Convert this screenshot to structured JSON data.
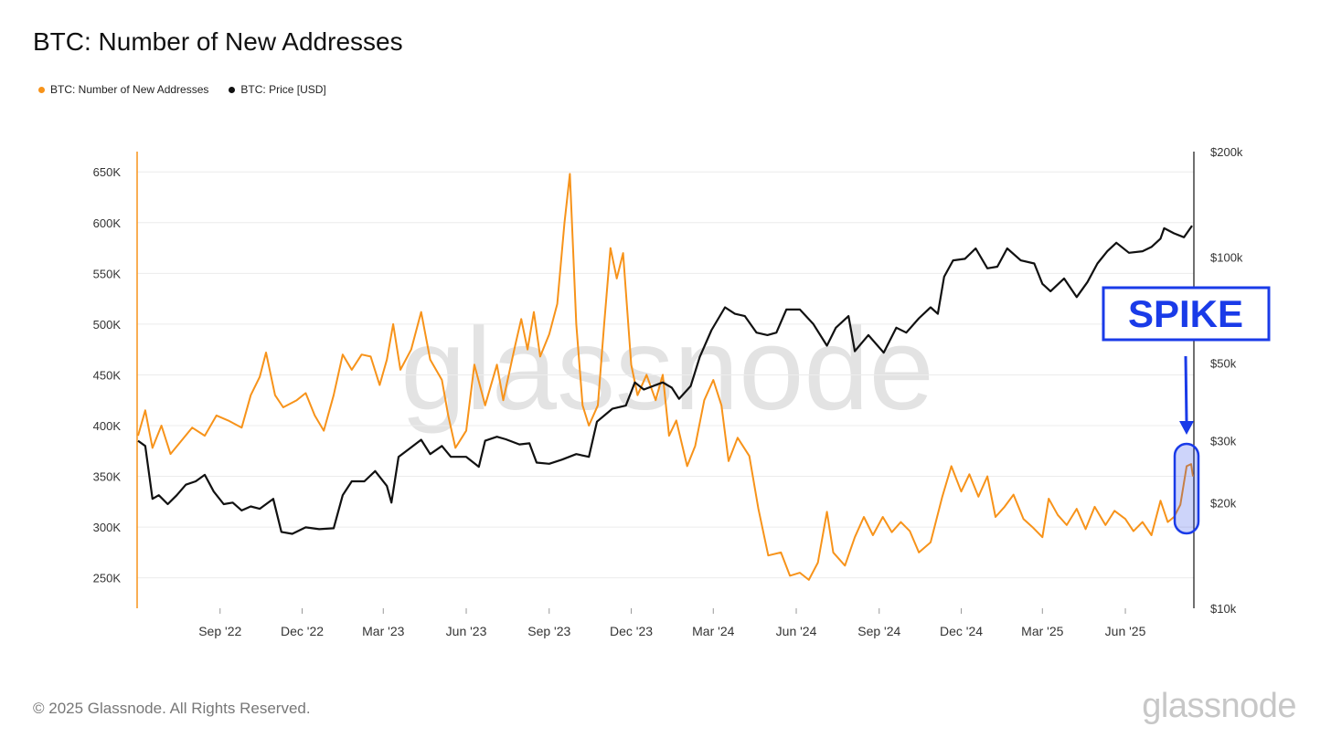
{
  "title": "BTC: Number of New Addresses",
  "legend": [
    {
      "label": "BTC: Number of New Addresses",
      "color": "#f7931a"
    },
    {
      "label": "BTC: Price [USD]",
      "color": "#111111"
    }
  ],
  "footer": "© 2025 Glassnode. All Rights Reserved.",
  "brand": "glassnode",
  "watermark": "glassnode",
  "annotation": {
    "label": "SPIKE",
    "color": "#1a3be8"
  },
  "chart_data": {
    "type": "line",
    "title": "BTC: Number of New Addresses",
    "x_ticks": [
      "Sep '22",
      "Dec '22",
      "Mar '23",
      "Jun '23",
      "Sep '23",
      "Dec '23",
      "Mar '24",
      "Jun '24",
      "Sep '24",
      "Dec '24",
      "Mar '25",
      "Jun '25"
    ],
    "x_range": [
      "2022-06-01",
      "2025-08-16"
    ],
    "y_left": {
      "ticks": [
        "650K",
        "600K",
        "550K",
        "500K",
        "450K",
        "400K",
        "350K",
        "300K",
        "250K"
      ],
      "values": [
        650000,
        600000,
        550000,
        500000,
        450000,
        400000,
        350000,
        300000,
        250000
      ],
      "range": [
        220000,
        670000
      ]
    },
    "y_right": {
      "ticks": [
        "$200k",
        "$100k",
        "$50k",
        "$30k",
        "$20k",
        "$10k"
      ],
      "values": [
        200000,
        100000,
        50000,
        30000,
        20000,
        10000
      ],
      "scale": "log",
      "range": [
        10000,
        200000
      ]
    },
    "grid": true,
    "legend_position": "top-left",
    "series": [
      {
        "name": "BTC: Number of New Addresses",
        "color": "#f7931a",
        "axis": "left",
        "points": [
          [
            "2022-06-02",
            390000
          ],
          [
            "2022-06-10",
            415000
          ],
          [
            "2022-06-18",
            378000
          ],
          [
            "2022-06-28",
            400000
          ],
          [
            "2022-07-08",
            372000
          ],
          [
            "2022-07-20",
            385000
          ],
          [
            "2022-08-01",
            398000
          ],
          [
            "2022-08-15",
            390000
          ],
          [
            "2022-08-28",
            410000
          ],
          [
            "2022-09-10",
            405000
          ],
          [
            "2022-09-25",
            398000
          ],
          [
            "2022-10-05",
            430000
          ],
          [
            "2022-10-15",
            448000
          ],
          [
            "2022-10-22",
            472000
          ],
          [
            "2022-11-01",
            430000
          ],
          [
            "2022-11-10",
            418000
          ],
          [
            "2022-11-25",
            425000
          ],
          [
            "2022-12-05",
            432000
          ],
          [
            "2022-12-15",
            410000
          ],
          [
            "2022-12-25",
            395000
          ],
          [
            "2023-01-05",
            430000
          ],
          [
            "2023-01-15",
            470000
          ],
          [
            "2023-01-25",
            455000
          ],
          [
            "2023-02-05",
            470000
          ],
          [
            "2023-02-15",
            468000
          ],
          [
            "2023-02-25",
            440000
          ],
          [
            "2023-03-05",
            465000
          ],
          [
            "2023-03-12",
            500000
          ],
          [
            "2023-03-20",
            455000
          ],
          [
            "2023-04-01",
            475000
          ],
          [
            "2023-04-12",
            512000
          ],
          [
            "2023-04-22",
            465000
          ],
          [
            "2023-05-05",
            445000
          ],
          [
            "2023-05-12",
            410000
          ],
          [
            "2023-05-20",
            378000
          ],
          [
            "2023-06-01",
            395000
          ],
          [
            "2023-06-10",
            460000
          ],
          [
            "2023-06-22",
            420000
          ],
          [
            "2023-07-05",
            460000
          ],
          [
            "2023-07-12",
            425000
          ],
          [
            "2023-07-25",
            478000
          ],
          [
            "2023-08-01",
            505000
          ],
          [
            "2023-08-08",
            475000
          ],
          [
            "2023-08-15",
            512000
          ],
          [
            "2023-08-22",
            468000
          ],
          [
            "2023-09-01",
            490000
          ],
          [
            "2023-09-10",
            520000
          ],
          [
            "2023-09-18",
            600000
          ],
          [
            "2023-09-24",
            648000
          ],
          [
            "2023-10-01",
            500000
          ],
          [
            "2023-10-08",
            420000
          ],
          [
            "2023-10-15",
            400000
          ],
          [
            "2023-10-25",
            420000
          ],
          [
            "2023-11-01",
            500000
          ],
          [
            "2023-11-08",
            575000
          ],
          [
            "2023-11-15",
            545000
          ],
          [
            "2023-11-22",
            570000
          ],
          [
            "2023-12-01",
            460000
          ],
          [
            "2023-12-08",
            430000
          ],
          [
            "2023-12-18",
            450000
          ],
          [
            "2023-12-28",
            425000
          ],
          [
            "2024-01-05",
            450000
          ],
          [
            "2024-01-12",
            390000
          ],
          [
            "2024-01-20",
            405000
          ],
          [
            "2024-02-01",
            360000
          ],
          [
            "2024-02-10",
            380000
          ],
          [
            "2024-02-20",
            425000
          ],
          [
            "2024-03-01",
            445000
          ],
          [
            "2024-03-10",
            420000
          ],
          [
            "2024-03-18",
            365000
          ],
          [
            "2024-03-28",
            388000
          ],
          [
            "2024-04-10",
            370000
          ],
          [
            "2024-04-20",
            318000
          ],
          [
            "2024-05-01",
            272000
          ],
          [
            "2024-05-15",
            275000
          ],
          [
            "2024-05-25",
            252000
          ],
          [
            "2024-06-05",
            255000
          ],
          [
            "2024-06-15",
            248000
          ],
          [
            "2024-06-25",
            265000
          ],
          [
            "2024-07-05",
            315000
          ],
          [
            "2024-07-12",
            275000
          ],
          [
            "2024-07-25",
            262000
          ],
          [
            "2024-08-05",
            290000
          ],
          [
            "2024-08-15",
            310000
          ],
          [
            "2024-08-25",
            292000
          ],
          [
            "2024-09-05",
            310000
          ],
          [
            "2024-09-15",
            295000
          ],
          [
            "2024-09-25",
            305000
          ],
          [
            "2024-10-05",
            296000
          ],
          [
            "2024-10-15",
            275000
          ],
          [
            "2024-10-28",
            285000
          ],
          [
            "2024-11-10",
            330000
          ],
          [
            "2024-11-20",
            360000
          ],
          [
            "2024-12-01",
            335000
          ],
          [
            "2024-12-10",
            352000
          ],
          [
            "2024-12-20",
            330000
          ],
          [
            "2024-12-30",
            350000
          ],
          [
            "2025-01-08",
            310000
          ],
          [
            "2025-01-18",
            320000
          ],
          [
            "2025-01-28",
            332000
          ],
          [
            "2025-02-08",
            308000
          ],
          [
            "2025-02-18",
            300000
          ],
          [
            "2025-03-01",
            290000
          ],
          [
            "2025-03-08",
            328000
          ],
          [
            "2025-03-18",
            312000
          ],
          [
            "2025-03-28",
            302000
          ],
          [
            "2025-04-08",
            318000
          ],
          [
            "2025-04-18",
            298000
          ],
          [
            "2025-04-28",
            320000
          ],
          [
            "2025-05-10",
            302000
          ],
          [
            "2025-05-20",
            316000
          ],
          [
            "2025-06-01",
            308000
          ],
          [
            "2025-06-10",
            296000
          ],
          [
            "2025-06-20",
            305000
          ],
          [
            "2025-06-30",
            292000
          ],
          [
            "2025-07-10",
            326000
          ],
          [
            "2025-07-18",
            305000
          ],
          [
            "2025-07-25",
            310000
          ],
          [
            "2025-08-01",
            322000
          ],
          [
            "2025-08-08",
            360000
          ],
          [
            "2025-08-13",
            362000
          ],
          [
            "2025-08-15",
            350000
          ]
        ]
      },
      {
        "name": "BTC: Price [USD]",
        "color": "#111111",
        "axis": "right",
        "points": [
          [
            "2022-06-02",
            30000
          ],
          [
            "2022-06-10",
            29000
          ],
          [
            "2022-06-18",
            20500
          ],
          [
            "2022-06-25",
            21000
          ],
          [
            "2022-07-05",
            19800
          ],
          [
            "2022-07-15",
            21000
          ],
          [
            "2022-07-25",
            22500
          ],
          [
            "2022-08-05",
            23000
          ],
          [
            "2022-08-15",
            24000
          ],
          [
            "2022-08-25",
            21500
          ],
          [
            "2022-09-05",
            19800
          ],
          [
            "2022-09-15",
            20000
          ],
          [
            "2022-09-25",
            19000
          ],
          [
            "2022-10-05",
            19500
          ],
          [
            "2022-10-15",
            19200
          ],
          [
            "2022-10-30",
            20500
          ],
          [
            "2022-11-08",
            16500
          ],
          [
            "2022-11-20",
            16300
          ],
          [
            "2022-12-05",
            17000
          ],
          [
            "2022-12-20",
            16800
          ],
          [
            "2023-01-05",
            16900
          ],
          [
            "2023-01-15",
            21000
          ],
          [
            "2023-01-25",
            23000
          ],
          [
            "2023-02-08",
            23000
          ],
          [
            "2023-02-20",
            24600
          ],
          [
            "2023-03-05",
            22300
          ],
          [
            "2023-03-10",
            20000
          ],
          [
            "2023-03-18",
            27000
          ],
          [
            "2023-03-30",
            28500
          ],
          [
            "2023-04-12",
            30200
          ],
          [
            "2023-04-22",
            27500
          ],
          [
            "2023-05-05",
            29000
          ],
          [
            "2023-05-15",
            27000
          ],
          [
            "2023-06-01",
            27000
          ],
          [
            "2023-06-15",
            25300
          ],
          [
            "2023-06-22",
            30000
          ],
          [
            "2023-07-05",
            30800
          ],
          [
            "2023-07-15",
            30300
          ],
          [
            "2023-07-30",
            29300
          ],
          [
            "2023-08-10",
            29500
          ],
          [
            "2023-08-18",
            26000
          ],
          [
            "2023-09-01",
            25800
          ],
          [
            "2023-09-15",
            26500
          ],
          [
            "2023-10-01",
            27500
          ],
          [
            "2023-10-15",
            27000
          ],
          [
            "2023-10-24",
            34000
          ],
          [
            "2023-11-10",
            37000
          ],
          [
            "2023-11-25",
            37800
          ],
          [
            "2023-12-05",
            44000
          ],
          [
            "2023-12-15",
            42000
          ],
          [
            "2024-01-05",
            44000
          ],
          [
            "2024-01-15",
            42500
          ],
          [
            "2024-01-23",
            39500
          ],
          [
            "2024-02-05",
            43000
          ],
          [
            "2024-02-15",
            52000
          ],
          [
            "2024-02-28",
            62000
          ],
          [
            "2024-03-14",
            72000
          ],
          [
            "2024-03-25",
            69000
          ],
          [
            "2024-04-05",
            68000
          ],
          [
            "2024-04-18",
            61000
          ],
          [
            "2024-04-30",
            60000
          ],
          [
            "2024-05-10",
            61000
          ],
          [
            "2024-05-21",
            71000
          ],
          [
            "2024-06-05",
            71000
          ],
          [
            "2024-06-20",
            64500
          ],
          [
            "2024-07-05",
            56000
          ],
          [
            "2024-07-15",
            63000
          ],
          [
            "2024-07-29",
            68000
          ],
          [
            "2024-08-05",
            54000
          ],
          [
            "2024-08-20",
            60000
          ],
          [
            "2024-09-06",
            53500
          ],
          [
            "2024-09-20",
            63000
          ],
          [
            "2024-10-01",
            61000
          ],
          [
            "2024-10-15",
            67000
          ],
          [
            "2024-10-28",
            72000
          ],
          [
            "2024-11-05",
            69000
          ],
          [
            "2024-11-12",
            88000
          ],
          [
            "2024-11-22",
            98000
          ],
          [
            "2024-12-05",
            99000
          ],
          [
            "2024-12-17",
            106000
          ],
          [
            "2024-12-30",
            93000
          ],
          [
            "2025-01-10",
            94000
          ],
          [
            "2025-01-21",
            106000
          ],
          [
            "2025-02-05",
            98000
          ],
          [
            "2025-02-20",
            96000
          ],
          [
            "2025-03-01",
            84000
          ],
          [
            "2025-03-10",
            80000
          ],
          [
            "2025-03-25",
            87000
          ],
          [
            "2025-04-08",
            77000
          ],
          [
            "2025-04-20",
            85000
          ],
          [
            "2025-05-01",
            96000
          ],
          [
            "2025-05-12",
            104000
          ],
          [
            "2025-05-22",
            110000
          ],
          [
            "2025-06-05",
            103000
          ],
          [
            "2025-06-20",
            104000
          ],
          [
            "2025-06-30",
            107000
          ],
          [
            "2025-07-10",
            113000
          ],
          [
            "2025-07-14",
            121000
          ],
          [
            "2025-07-25",
            117000
          ],
          [
            "2025-08-05",
            114000
          ],
          [
            "2025-08-14",
            123000
          ]
        ]
      }
    ]
  }
}
